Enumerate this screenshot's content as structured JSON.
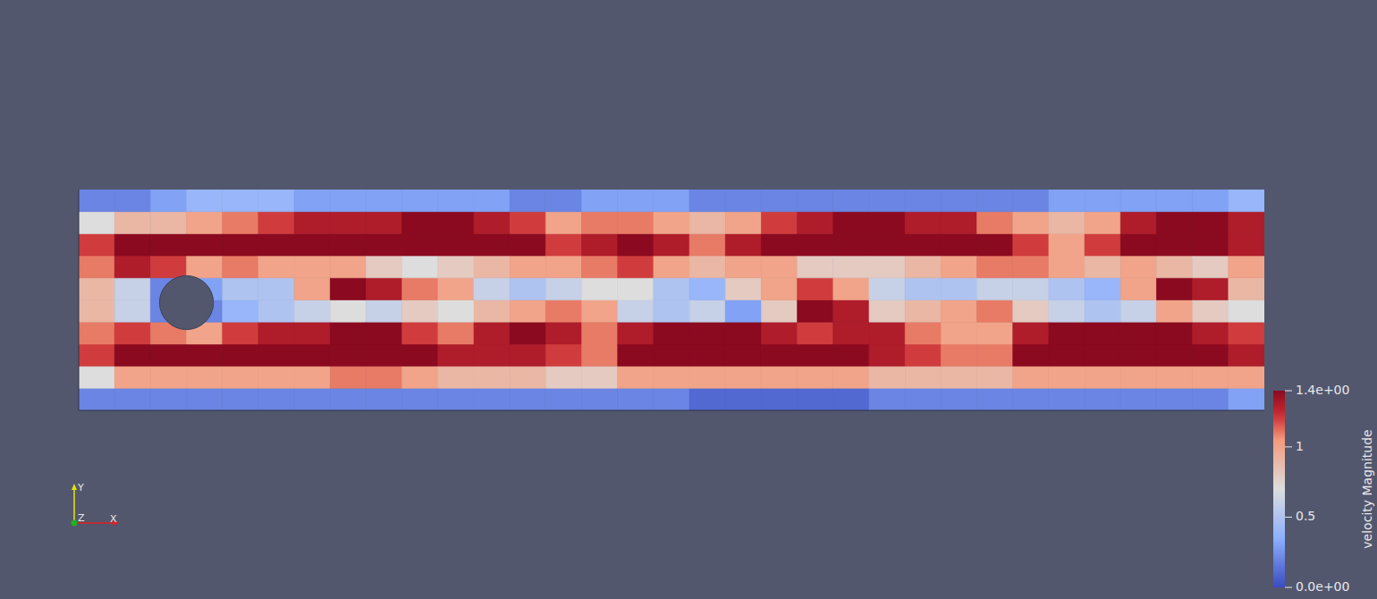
{
  "chart_data": {
    "type": "heatmap",
    "xlim": [
      0,
      2.2
    ],
    "ylim": [
      0,
      0.41
    ],
    "tick_labels": false,
    "obstacle": {
      "x": 0.2,
      "y": 0.2,
      "r": 0.05
    },
    "axes_triad": [
      "X",
      "Y",
      "Z"
    ],
    "colorbar": {
      "title": "velocity Magnitude",
      "range": [
        0,
        1.4
      ],
      "ticks": [
        {
          "value": 0,
          "label": "0.0e+00"
        },
        0.5,
        1,
        {
          "value": 1.4,
          "label": "1.4e+00"
        }
      ]
    },
    "cells": [
      [
        0.2,
        0.7,
        1.2,
        1.1,
        0.9,
        0.9,
        1.1,
        1.2,
        0.7,
        0.2
      ],
      [
        0.2,
        1.0,
        1.4,
        1.2,
        0.6,
        0.6,
        1.3,
        1.4,
        0.9,
        0.2
      ],
      [
        0.2,
        1.0,
        1.4,
        1.1,
        0.2,
        0.2,
        1.2,
        1.4,
        0.9,
        0.3
      ],
      [
        0.2,
        1.0,
        1.4,
        1.0,
        0.2,
        0.3,
        1.0,
        1.4,
        1.0,
        0.4
      ],
      [
        0.2,
        1.0,
        1.4,
        1.2,
        0.4,
        0.5,
        1.1,
        1.4,
        1.1,
        0.4
      ],
      [
        0.2,
        1.0,
        1.4,
        1.3,
        0.5,
        0.5,
        1.0,
        1.4,
        1.2,
        0.4
      ],
      [
        0.2,
        1.0,
        1.4,
        1.3,
        0.6,
        1.0,
        1.0,
        1.4,
        1.3,
        0.3
      ],
      [
        0.2,
        1.1,
        1.4,
        1.4,
        0.7,
        1.4,
        1.0,
        1.4,
        1.3,
        0.3
      ],
      [
        0.2,
        1.1,
        1.4,
        1.4,
        0.6,
        1.3,
        0.8,
        1.4,
        1.3,
        0.3
      ],
      [
        0.2,
        1.0,
        1.4,
        1.2,
        0.8,
        1.1,
        0.7,
        1.4,
        1.4,
        0.3
      ],
      [
        0.2,
        0.9,
        1.3,
        1.1,
        0.7,
        1.0,
        0.8,
        1.4,
        1.4,
        0.3
      ],
      [
        0.2,
        0.9,
        1.3,
        1.3,
        0.9,
        0.6,
        0.9,
        1.4,
        1.3,
        0.3
      ],
      [
        0.2,
        0.9,
        1.3,
        1.4,
        1.0,
        0.5,
        1.0,
        1.4,
        1.2,
        0.2
      ],
      [
        0.2,
        0.8,
        1.2,
        1.3,
        1.1,
        0.6,
        1.0,
        1.2,
        1.0,
        0.2
      ],
      [
        0.2,
        0.8,
        1.1,
        1.1,
        1.0,
        0.7,
        1.1,
        1.3,
        1.1,
        0.3
      ],
      [
        0.2,
        1.0,
        1.4,
        1.3,
        0.6,
        0.7,
        1.2,
        1.4,
        1.1,
        0.3
      ],
      [
        0.2,
        1.0,
        1.4,
        1.4,
        0.5,
        0.5,
        1.0,
        1.3,
        1.0,
        0.3
      ],
      [
        0.1,
        1.0,
        1.4,
        1.4,
        0.6,
        0.4,
        0.9,
        1.1,
        0.9,
        0.2
      ],
      [
        0.1,
        1.0,
        1.4,
        1.4,
        0.3,
        0.8,
        1.0,
        1.3,
        1.0,
        0.2
      ],
      [
        0.1,
        1.0,
        1.4,
        1.3,
        0.8,
        1.0,
        1.0,
        1.4,
        1.2,
        0.2
      ],
      [
        0.1,
        1.0,
        1.4,
        1.2,
        1.4,
        1.2,
        0.8,
        1.4,
        1.3,
        0.2
      ],
      [
        0.1,
        1.0,
        1.4,
        1.3,
        1.3,
        1.0,
        0.8,
        1.4,
        1.4,
        0.2
      ],
      [
        0.2,
        0.9,
        1.3,
        1.3,
        0.8,
        0.6,
        0.8,
        1.4,
        1.4,
        0.2
      ],
      [
        0.2,
        0.9,
        1.2,
        1.1,
        0.9,
        0.5,
        0.9,
        1.4,
        1.3,
        0.2
      ],
      [
        0.2,
        0.9,
        1.1,
        1.0,
        1.0,
        0.5,
        1.0,
        1.4,
        1.3,
        0.2
      ],
      [
        0.2,
        0.9,
        1.1,
        1.0,
        1.1,
        0.6,
        1.1,
        1.4,
        1.1,
        0.2
      ],
      [
        0.2,
        1.0,
        1.4,
        1.3,
        0.8,
        0.6,
        1.1,
        1.2,
        1.0,
        0.2
      ],
      [
        0.2,
        1.0,
        1.4,
        1.4,
        0.6,
        0.5,
        1.0,
        1.0,
        0.9,
        0.3
      ],
      [
        0.2,
        1.0,
        1.4,
        1.4,
        0.5,
        0.4,
        0.9,
        1.2,
        1.0,
        0.3
      ],
      [
        0.2,
        1.0,
        1.4,
        1.4,
        0.6,
        1.0,
        1.0,
        1.4,
        1.3,
        0.3
      ],
      [
        0.2,
        1.0,
        1.4,
        1.4,
        1.0,
        1.4,
        0.9,
        1.4,
        1.4,
        0.3
      ],
      [
        0.2,
        1.0,
        1.4,
        1.3,
        0.8,
        1.3,
        0.8,
        1.4,
        1.4,
        0.3
      ],
      [
        0.3,
        1.0,
        1.3,
        1.2,
        0.7,
        0.9,
        1.0,
        1.3,
        1.3,
        0.4
      ]
    ]
  }
}
